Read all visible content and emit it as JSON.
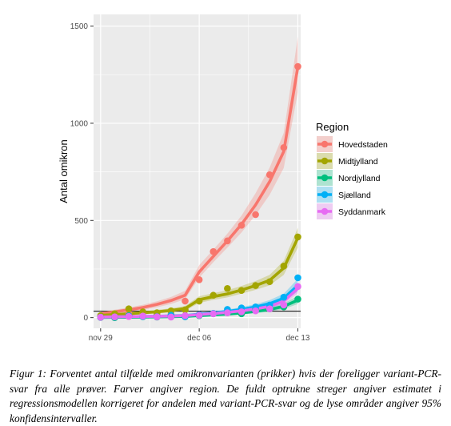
{
  "chart_data": {
    "type": "line",
    "xlabel": "",
    "ylabel": "Antal omikron",
    "x_ticks": [
      "nov 29",
      "dec 06",
      "dec 13"
    ],
    "x_days": [
      "nov 29",
      "nov 30",
      "dec 01",
      "dec 02",
      "dec 03",
      "dec 04",
      "dec 05",
      "dec 06",
      "dec 07",
      "dec 08",
      "dec 09",
      "dec 10",
      "dec 11",
      "dec 12",
      "dec 13"
    ],
    "y_ticks": [
      0,
      500,
      1000,
      1500
    ],
    "ylim": [
      -55,
      1560
    ],
    "xlim": [
      "nov 28",
      "dec 13"
    ],
    "grid": true,
    "legend": {
      "title": "Region",
      "position": "right"
    },
    "series": [
      {
        "name": "Hovedstaden",
        "color": "#F8766D",
        "points": [
          [
            0,
            2
          ],
          [
            1,
            8
          ],
          [
            2,
            20
          ],
          [
            3,
            25
          ],
          [
            4,
            15
          ],
          [
            5,
            18
          ],
          [
            6,
            85
          ],
          [
            7,
            195
          ],
          [
            8,
            340
          ],
          [
            9,
            395
          ],
          [
            10,
            475
          ],
          [
            11,
            530
          ],
          [
            12,
            735
          ],
          [
            13,
            875
          ],
          [
            14,
            1292
          ]
        ],
        "estimate": [
          20,
          30,
          40,
          52,
          68,
          88,
          115,
          235,
          315,
          395,
          480,
          580,
          700,
          855,
          1290
        ],
        "ci_lower": [
          12,
          20,
          29,
          40,
          53,
          70,
          95,
          205,
          285,
          360,
          438,
          528,
          632,
          770,
          1160
        ],
        "ci_upper": [
          30,
          41,
          52,
          66,
          84,
          106,
          138,
          270,
          350,
          432,
          525,
          640,
          772,
          950,
          1445
        ]
      },
      {
        "name": "Midtjylland",
        "color": "#A3A500",
        "points": [
          [
            0,
            10
          ],
          [
            1,
            20
          ],
          [
            2,
            45
          ],
          [
            3,
            30
          ],
          [
            4,
            25
          ],
          [
            5,
            35
          ],
          [
            6,
            40
          ],
          [
            7,
            85
          ],
          [
            8,
            115
          ],
          [
            9,
            150
          ],
          [
            10,
            140
          ],
          [
            11,
            165
          ],
          [
            12,
            185
          ],
          [
            13,
            265
          ],
          [
            14,
            415
          ]
        ],
        "estimate": [
          12,
          16,
          20,
          25,
          30,
          37,
          47,
          92,
          108,
          122,
          142,
          165,
          192,
          255,
          410
        ],
        "ci_lower": [
          7,
          10,
          13,
          17,
          21,
          27,
          35,
          76,
          91,
          104,
          123,
          143,
          166,
          220,
          360
        ],
        "ci_upper": [
          18,
          23,
          28,
          34,
          40,
          48,
          60,
          110,
          126,
          141,
          163,
          188,
          220,
          292,
          462
        ]
      },
      {
        "name": "Nordjylland",
        "color": "#00BF7D",
        "points": [
          [
            0,
            1
          ],
          [
            1,
            0
          ],
          [
            2,
            10
          ],
          [
            3,
            5
          ],
          [
            4,
            3
          ],
          [
            5,
            5
          ],
          [
            6,
            5
          ],
          [
            7,
            10
          ],
          [
            8,
            20
          ],
          [
            9,
            25
          ],
          [
            10,
            20
          ],
          [
            11,
            40
          ],
          [
            12,
            45
          ],
          [
            13,
            55
          ],
          [
            14,
            95
          ]
        ],
        "estimate": [
          1,
          2,
          2,
          3,
          4,
          5,
          6,
          10,
          14,
          18,
          24,
          32,
          42,
          58,
          90
        ],
        "ci_lower": [
          0,
          0,
          1,
          1,
          2,
          2,
          3,
          6,
          9,
          12,
          17,
          23,
          31,
          44,
          70
        ],
        "ci_upper": [
          3,
          4,
          5,
          6,
          7,
          8,
          10,
          15,
          20,
          25,
          32,
          42,
          54,
          73,
          112
        ]
      },
      {
        "name": "Sjælland",
        "color": "#00B0F6",
        "points": [
          [
            0,
            2
          ],
          [
            1,
            3
          ],
          [
            2,
            8
          ],
          [
            3,
            6
          ],
          [
            4,
            5
          ],
          [
            5,
            12
          ],
          [
            6,
            5
          ],
          [
            7,
            15
          ],
          [
            8,
            22
          ],
          [
            9,
            42
          ],
          [
            10,
            50
          ],
          [
            11,
            55
          ],
          [
            12,
            65
          ],
          [
            13,
            105
          ],
          [
            14,
            205
          ]
        ],
        "estimate": [
          3,
          4,
          5,
          6,
          7,
          9,
          11,
          18,
          24,
          32,
          42,
          55,
          72,
          100,
          165
        ],
        "ci_lower": [
          1,
          2,
          3,
          3,
          4,
          5,
          7,
          12,
          17,
          24,
          32,
          43,
          57,
          81,
          135
        ],
        "ci_upper": [
          5,
          6,
          8,
          9,
          11,
          13,
          16,
          25,
          32,
          42,
          54,
          69,
          90,
          123,
          200
        ]
      },
      {
        "name": "Syddanmark",
        "color": "#E76BF3",
        "points": [
          [
            0,
            2
          ],
          [
            1,
            4
          ],
          [
            2,
            6
          ],
          [
            3,
            8
          ],
          [
            4,
            4
          ],
          [
            5,
            3
          ],
          [
            6,
            10
          ],
          [
            7,
            12
          ],
          [
            8,
            20
          ],
          [
            9,
            25
          ],
          [
            10,
            30
          ],
          [
            11,
            35
          ],
          [
            12,
            45
          ],
          [
            13,
            65
          ],
          [
            14,
            160
          ]
        ],
        "estimate": [
          3,
          4,
          5,
          6,
          7,
          8,
          10,
          16,
          21,
          27,
          35,
          45,
          58,
          85,
          150
        ],
        "ci_lower": [
          1,
          2,
          3,
          3,
          4,
          5,
          6,
          11,
          15,
          20,
          27,
          35,
          46,
          69,
          125
        ],
        "ci_upper": [
          5,
          6,
          8,
          9,
          10,
          12,
          14,
          22,
          28,
          35,
          44,
          56,
          72,
          104,
          180
        ]
      }
    ]
  },
  "caption": "Figur 1: Forventet antal tilfælde med omikronvarianten (prikker) hvis der foreligger variant-PCR-svar fra alle prøver. Farver angiver region. De fuldt optrukne streger angiver estimatet i regressionsmodellen korrigeret for andelen med variant-PCR-svar og de lyse områder angiver 95% konfidensintervaller."
}
